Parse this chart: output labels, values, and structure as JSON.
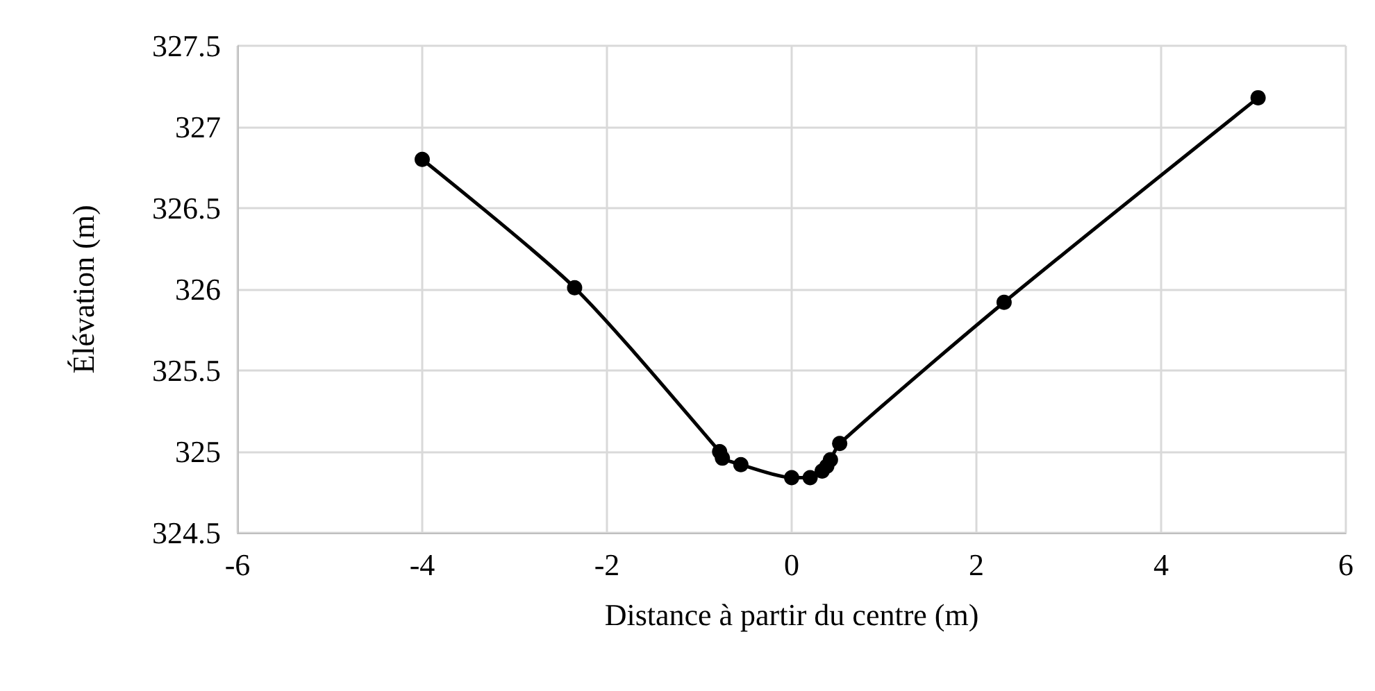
{
  "chart_data": {
    "type": "line",
    "xlabel": "Distance à partir du centre (m)",
    "ylabel": "Élévation (m)",
    "x": [
      -4,
      -2.35,
      -0.78,
      -0.75,
      -0.55,
      0,
      0.2,
      0.33,
      0.38,
      0.42,
      0.52,
      2.3,
      5.05
    ],
    "series": [
      {
        "color": "#000000",
        "values": [
          326.8,
          326.01,
          325.0,
          324.96,
          324.92,
          324.84,
          324.84,
          324.88,
          324.91,
          324.95,
          325.05,
          325.92,
          327.18
        ]
      }
    ],
    "xlim": [
      -6,
      6
    ],
    "xticks": [
      -6,
      -4,
      -2,
      0,
      2,
      4,
      6
    ],
    "ylim": [
      324.5,
      327.5
    ],
    "yticks": [
      324.5,
      325,
      325.5,
      326,
      326.5,
      327,
      327.5
    ],
    "grid": true,
    "marker": "circle",
    "line_style": "solid"
  }
}
